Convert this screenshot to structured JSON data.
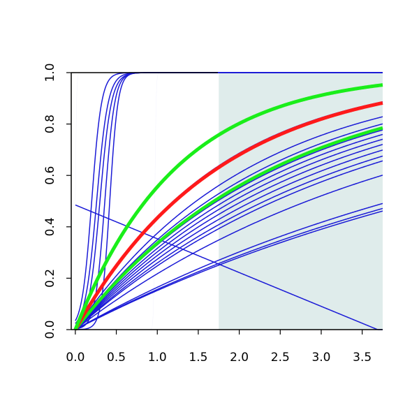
{
  "chart_data": {
    "type": "line",
    "title": "",
    "xlabel": "",
    "ylabel": "",
    "xlim": [
      -0.05,
      3.75
    ],
    "ylim": [
      0,
      1
    ],
    "x_ticks": [
      "0.0",
      "0.5",
      "1.0",
      "1.5",
      "2.0",
      "2.5",
      "3.0",
      "3.5"
    ],
    "y_ticks": [
      "0.0",
      "0.2",
      "0.4",
      "0.6",
      "0.8",
      "1.0"
    ],
    "shaded_region": {
      "x_from": 1.75,
      "x_to": 3.75,
      "color": "#dfeceb"
    },
    "grid": false,
    "legend": "none",
    "colors": {
      "default": "#1a1ad6",
      "highlight_red": "#ff1a1a",
      "highlight_green": "#1aee1a"
    },
    "series": [
      {
        "kind": "step",
        "at": 0.0,
        "width": 0.03,
        "color": "#1a1ad6"
      },
      {
        "kind": "sigmoid",
        "mid": 0.2,
        "scale": 0.06,
        "color": "#1a1ad6"
      },
      {
        "kind": "sigmoid",
        "mid": 0.26,
        "scale": 0.07,
        "color": "#1a1ad6"
      },
      {
        "kind": "sigmoid",
        "mid": 0.3,
        "scale": 0.07,
        "color": "#1a1ad6"
      },
      {
        "kind": "sigmoid",
        "mid": 0.36,
        "scale": 0.06,
        "color": "#1a1ad6"
      },
      {
        "kind": "sigmoid",
        "mid": 0.42,
        "scale": 0.05,
        "color": "#1a1ad6"
      },
      {
        "kind": "step",
        "at": 0.97,
        "width": 0.03,
        "color": "#1a1ad6"
      },
      {
        "kind": "line",
        "a": 0.485,
        "b": -0.1315,
        "color": "#1a1ad6"
      },
      {
        "kind": "exp",
        "rate": 0.58,
        "color": "#1a1ad6"
      },
      {
        "kind": "exp",
        "rate": 0.47,
        "color": "#1a1ad6"
      },
      {
        "kind": "exp",
        "rate": 0.43,
        "color": "#1a1ad6"
      },
      {
        "kind": "exp",
        "rate": 0.4,
        "color": "#1a1ad6"
      },
      {
        "kind": "exp",
        "rate": 0.38,
        "color": "#1a1ad6"
      },
      {
        "kind": "exp",
        "rate": 0.36,
        "color": "#1a1ad6"
      },
      {
        "kind": "exp",
        "rate": 0.34,
        "color": "#1a1ad6"
      },
      {
        "kind": "exp",
        "rate": 0.32,
        "color": "#1a1ad6"
      },
      {
        "kind": "exp",
        "rate": 0.3,
        "color": "#1a1ad6"
      },
      {
        "kind": "exp",
        "rate": 0.285,
        "color": "#1a1ad6"
      },
      {
        "kind": "exp",
        "rate": 0.245,
        "color": "#1a1ad6"
      },
      {
        "kind": "exp",
        "rate": 0.18,
        "color": "#1a1ad6"
      },
      {
        "kind": "exp",
        "rate": 0.17,
        "color": "#1a1ad6"
      },
      {
        "kind": "exp",
        "rate": 0.165,
        "color": "#1a1ad6"
      },
      {
        "kind": "exp",
        "rate": 0.41,
        "color": "#1aee1a",
        "width": 4.5
      },
      {
        "kind": "exp",
        "rate": 0.57,
        "color": "#ff1a1a",
        "width": 5
      },
      {
        "kind": "exp",
        "rate": 0.81,
        "color": "#1aee1a",
        "width": 5
      }
    ]
  }
}
